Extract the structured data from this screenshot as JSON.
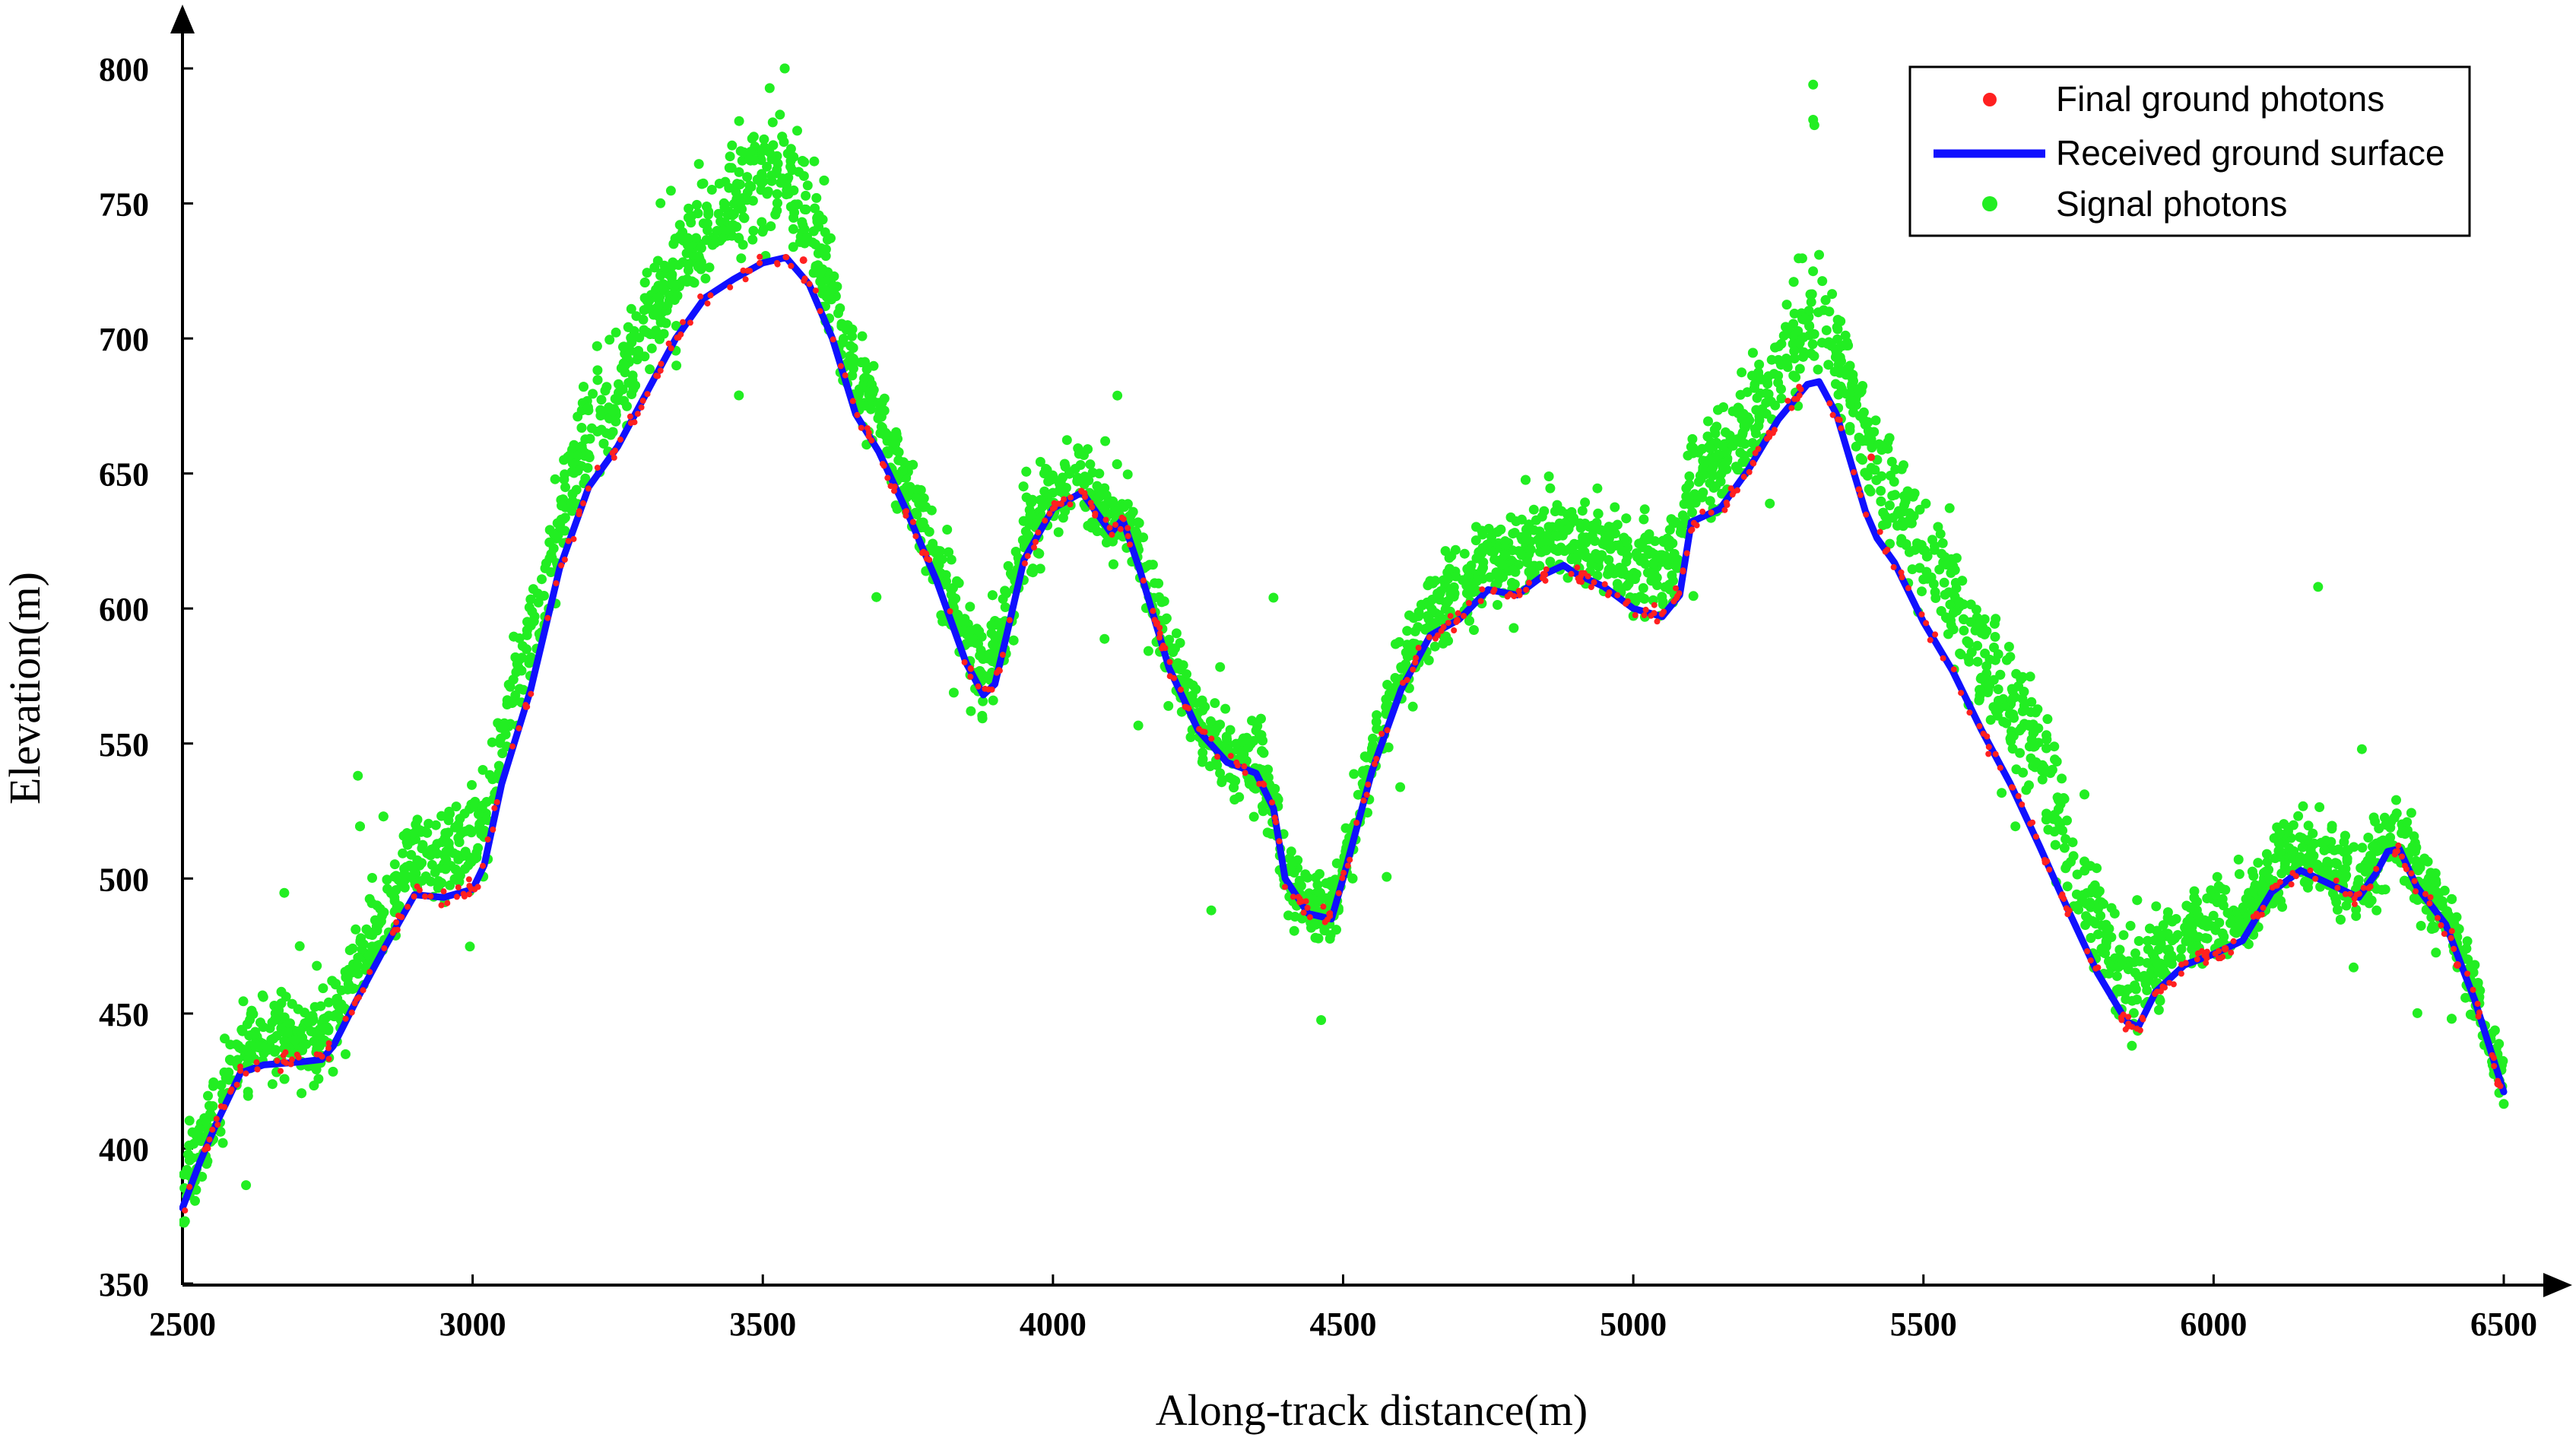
{
  "chart_data": {
    "type": "scatter",
    "title": "",
    "xlabel": "Along-track distance(m)",
    "ylabel": "Elevation(m)",
    "xlim": [
      2500,
      6500
    ],
    "ylim": [
      350,
      800
    ],
    "x_ticks": [
      2500,
      3000,
      3500,
      4000,
      4500,
      5000,
      5500,
      6000,
      6500
    ],
    "y_ticks": [
      350,
      400,
      450,
      500,
      550,
      600,
      650,
      700,
      750,
      800
    ],
    "grid": false,
    "legend_position": "top-right",
    "colors": {
      "final_ground_photons": "#ff2020",
      "received_ground_surface": "#1010ff",
      "signal_photons": "#22ee22"
    },
    "series": [
      {
        "name": "Final ground photons",
        "kind": "scatter",
        "color": "#ff2020"
      },
      {
        "name": "Received ground surface",
        "kind": "line",
        "color": "#1010ff",
        "x": [
          2500,
          2530,
          2560,
          2600,
          2640,
          2700,
          2740,
          2760,
          2800,
          2850,
          2900,
          2950,
          3000,
          3020,
          3050,
          3100,
          3150,
          3200,
          3250,
          3300,
          3350,
          3400,
          3450,
          3500,
          3540,
          3580,
          3620,
          3660,
          3700,
          3750,
          3800,
          3850,
          3880,
          3900,
          3920,
          3950,
          4000,
          4050,
          4060,
          4100,
          4120,
          4150,
          4200,
          4250,
          4300,
          4350,
          4380,
          4400,
          4440,
          4480,
          4500,
          4550,
          4600,
          4650,
          4700,
          4750,
          4800,
          4850,
          4880,
          4900,
          4950,
          5000,
          5050,
          5080,
          5100,
          5150,
          5200,
          5250,
          5300,
          5320,
          5350,
          5400,
          5420,
          5450,
          5500,
          5550,
          5600,
          5650,
          5700,
          5750,
          5800,
          5850,
          5870,
          5900,
          5950,
          6000,
          6050,
          6100,
          6150,
          6200,
          6250,
          6280,
          6300,
          6320,
          6350,
          6400,
          6450,
          6500
        ],
        "y": [
          378,
          395,
          410,
          428,
          431,
          432,
          433,
          438,
          455,
          475,
          494,
          493,
          496,
          505,
          535,
          570,
          615,
          645,
          660,
          680,
          700,
          715,
          722,
          728,
          730,
          720,
          700,
          672,
          658,
          635,
          610,
          580,
          568,
          572,
          590,
          618,
          637,
          643,
          640,
          628,
          633,
          614,
          578,
          555,
          543,
          539,
          526,
          500,
          487,
          485,
          500,
          540,
          570,
          590,
          596,
          607,
          605,
          613,
          616,
          613,
          608,
          600,
          597,
          605,
          632,
          637,
          652,
          670,
          683,
          684,
          672,
          636,
          626,
          617,
          595,
          577,
          555,
          535,
          512,
          488,
          465,
          447,
          445,
          458,
          468,
          472,
          477,
          495,
          503,
          498,
          493,
          502,
          510,
          511,
          497,
          483,
          455,
          421
        ]
      },
      {
        "name": "Signal photons",
        "kind": "scatter",
        "color": "#22ee22"
      }
    ]
  }
}
